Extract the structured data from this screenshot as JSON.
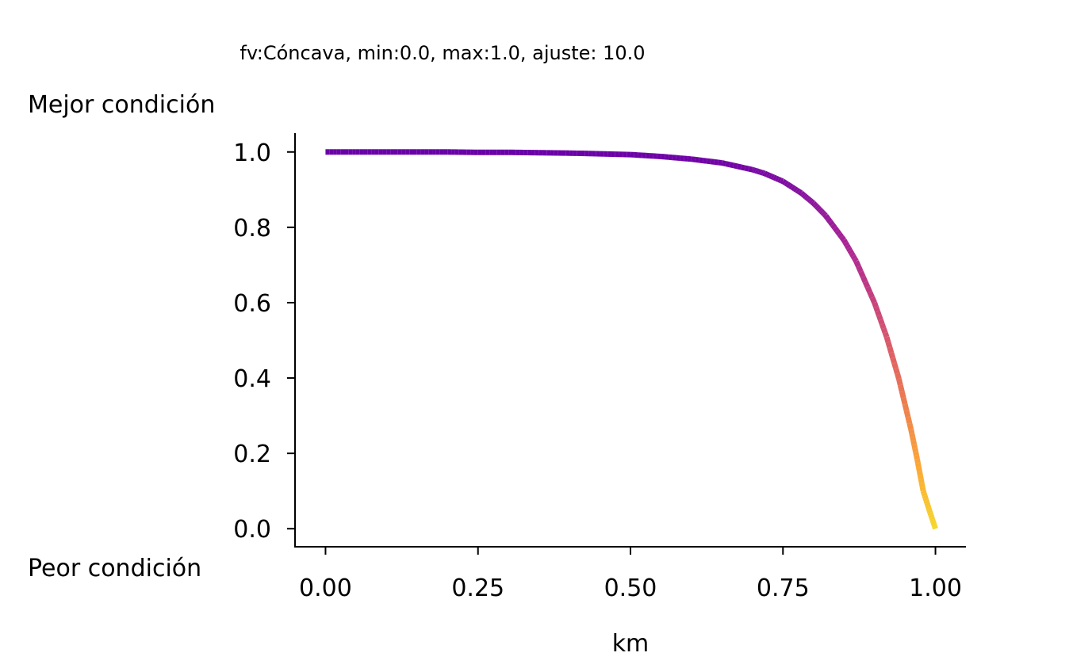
{
  "chart_data": {
    "type": "line",
    "title": "fv:Cóncava, min:0.0, max:1.0, ajuste: 10.0",
    "xlabel": "km",
    "ylabel_top": "Mejor condición",
    "ylabel_bottom": "Peor condición",
    "xlim": [
      -0.05,
      1.05
    ],
    "ylim": [
      -0.05,
      1.05
    ],
    "xticks": [
      0.0,
      0.25,
      0.5,
      0.75,
      1.0
    ],
    "xtick_labels": [
      "0.00",
      "0.25",
      "0.50",
      "0.75",
      "1.00"
    ],
    "yticks": [
      0.0,
      0.2,
      0.4,
      0.6,
      0.8,
      1.0
    ],
    "ytick_labels": [
      "0.0",
      "0.2",
      "0.4",
      "0.6",
      "0.8",
      "1.0"
    ],
    "grid": false,
    "colormap": [
      "#0d0887",
      "#6a00a8",
      "#b12a90",
      "#e16462",
      "#fca636",
      "#f0f921"
    ],
    "series": [
      {
        "x": [
          0.0,
          0.05,
          0.1,
          0.15,
          0.2,
          0.25,
          0.3,
          0.35,
          0.4,
          0.45,
          0.5,
          0.55,
          0.6,
          0.65,
          0.7,
          0.72,
          0.75,
          0.78,
          0.8,
          0.82,
          0.85,
          0.87,
          0.9,
          0.92,
          0.94,
          0.96,
          0.97,
          0.98,
          0.99,
          1.0
        ],
        "y": [
          1.0,
          1.0,
          1.0,
          1.0,
          1.0,
          0.999,
          0.999,
          0.998,
          0.997,
          0.995,
          0.993,
          0.988,
          0.981,
          0.971,
          0.953,
          0.943,
          0.922,
          0.891,
          0.864,
          0.831,
          0.766,
          0.71,
          0.6,
          0.509,
          0.398,
          0.263,
          0.185,
          0.1,
          0.049,
          0.0
        ]
      }
    ]
  }
}
